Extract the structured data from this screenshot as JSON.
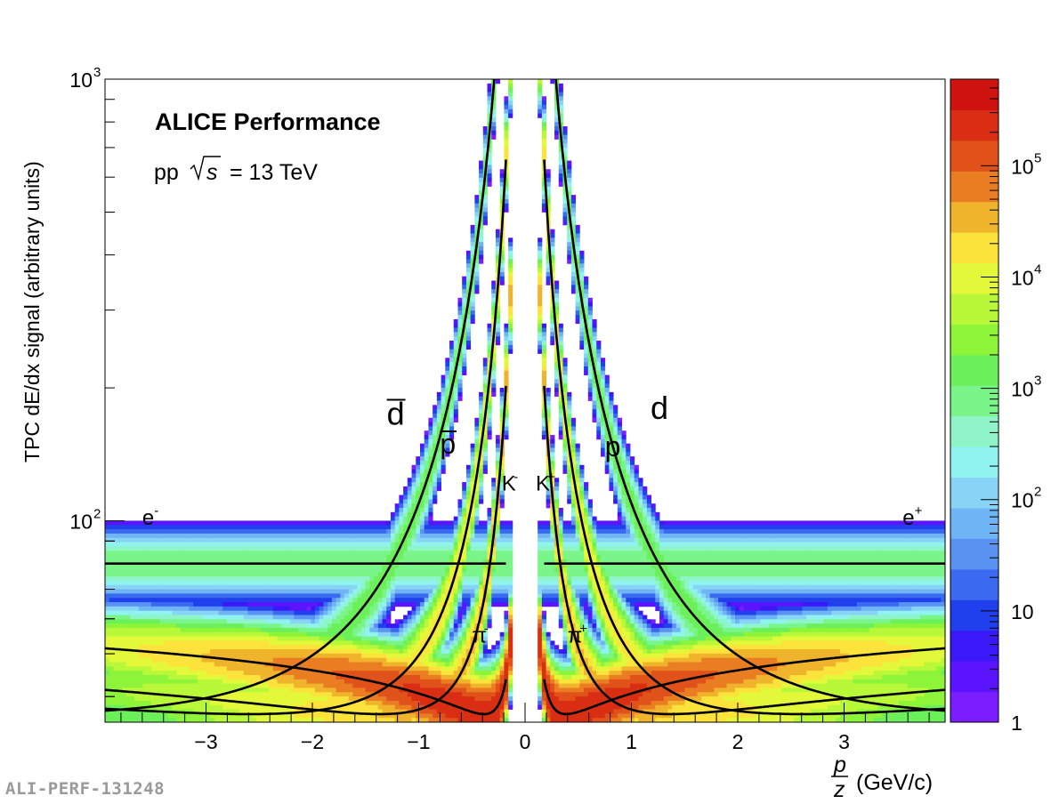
{
  "chart_data": {
    "type": "heatmap",
    "experiment": "ALICE Performance",
    "system": "pp",
    "energy_symbol": "s",
    "energy_value": "= 13 TeV",
    "ylabel": "TPC dE/dx signal (arbitrary units)",
    "xlabel_unit": "(GeV/c)",
    "x_range": [
      -3.95,
      3.95
    ],
    "y_range": [
      35,
      1000
    ],
    "y_scale": "log",
    "x_ticks": [
      {
        "v": -3,
        "label": "−3"
      },
      {
        "v": -2,
        "label": "−2"
      },
      {
        "v": -1,
        "label": "−1"
      },
      {
        "v": 0,
        "label": "0"
      },
      {
        "v": 1,
        "label": "1"
      },
      {
        "v": 2,
        "label": "2"
      },
      {
        "v": 3,
        "label": "3"
      }
    ],
    "colorbar": {
      "scale": "log",
      "range": [
        1,
        600000
      ],
      "colors": [
        "#7a1dff",
        "#5a14ff",
        "#3a18f8",
        "#2040ee",
        "#3a6af0",
        "#5a92f2",
        "#6fb4f4",
        "#88d4f6",
        "#8ff3f0",
        "#8ff5c8",
        "#7af58a",
        "#6cf05a",
        "#8ef43a",
        "#b8f838",
        "#e4f83a",
        "#fbe33c",
        "#f0b32c",
        "#ea7d22",
        "#e0521a",
        "#d92e13",
        "#cf1310"
      ],
      "ticks": [
        {
          "v": 1,
          "label": "1"
        },
        {
          "v": 10,
          "label": "10"
        },
        {
          "v": 100,
          "label": "10",
          "exp": "2"
        },
        {
          "v": 1000,
          "label": "10",
          "exp": "3"
        },
        {
          "v": 10000,
          "label": "10",
          "exp": "4"
        },
        {
          "v": 100000,
          "label": "10",
          "exp": "5"
        }
      ]
    },
    "species": [
      {
        "name": "d",
        "mass": 1.8756,
        "label": "d",
        "bar": true,
        "label_x": -1.3,
        "label_y": 165
      },
      {
        "name": "p",
        "mass": 0.9383,
        "label": "p",
        "bar": true,
        "label_x": -0.8,
        "label_y": 142
      },
      {
        "name": "K",
        "mass": 0.4937,
        "label": "K",
        "sup": "-",
        "label_x": -0.22,
        "label_y": 117
      },
      {
        "name": "pi",
        "mass": 0.1396,
        "label": "π",
        "sup": "-",
        "label_x": -0.5,
        "label_y": 53
      },
      {
        "name": "e",
        "mass": 0.000511,
        "label": "e",
        "sup": "-",
        "label_x": -3.6,
        "label_y": 98
      },
      {
        "name": "d+",
        "mass": 1.8756,
        "label": "d",
        "label_x": 1.18,
        "label_y": 170
      },
      {
        "name": "p+",
        "mass": 0.9383,
        "label": "p",
        "label_x": 0.75,
        "label_y": 140
      },
      {
        "name": "K+",
        "mass": 0.4937,
        "label": "K",
        "sup": "+",
        "label_x": 0.1,
        "label_y": 117
      },
      {
        "name": "pi+",
        "mass": 0.1396,
        "label": "π",
        "sup": "+",
        "label_x": 0.4,
        "label_y": 53
      },
      {
        "name": "e+",
        "mass": 0.000511,
        "label": "e",
        "sup": "+",
        "label_x": 3.55,
        "label_y": 98
      }
    ],
    "mip_value": 50,
    "electron_plateau": 80
  },
  "watermark": "ALI-PERF-131248"
}
